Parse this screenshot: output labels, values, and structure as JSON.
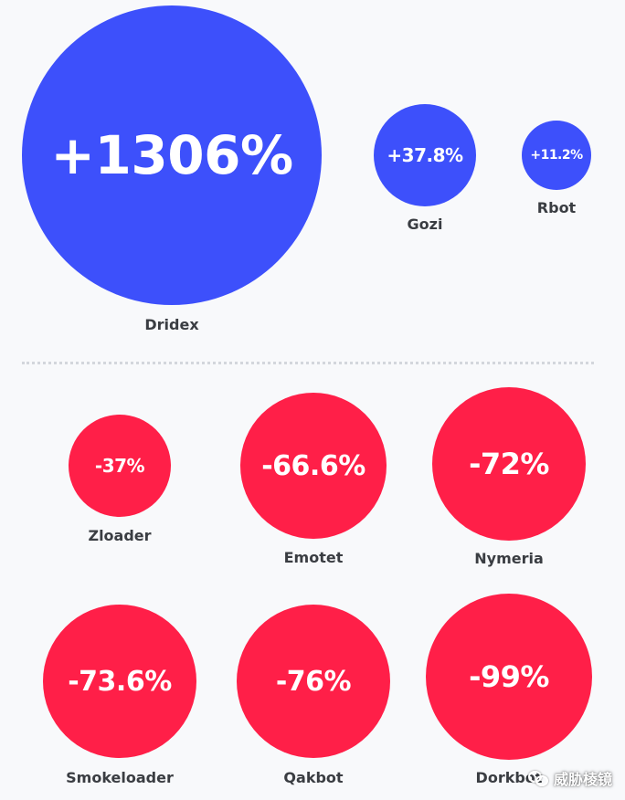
{
  "colors": {
    "background": "#f8f9fb",
    "increase": "#3d50fb",
    "decrease": "#ff1f48",
    "label": "#3a3d42",
    "divider": "#d3d6dc"
  },
  "chart_data": {
    "type": "bubble",
    "title": "",
    "value_unit": "%",
    "groups": [
      {
        "name": "increase",
        "color": "#3d50fb",
        "items": [
          {
            "label": "Dridex",
            "value": 1306,
            "display": "+1306%"
          },
          {
            "label": "Gozi",
            "value": 37.8,
            "display": "+37.8%"
          },
          {
            "label": "Rbot",
            "value": 11.2,
            "display": "+11.2%"
          }
        ]
      },
      {
        "name": "decrease",
        "color": "#ff1f48",
        "items": [
          {
            "label": "Zloader",
            "value": -37,
            "display": "-37%"
          },
          {
            "label": "Emotet",
            "value": -66.6,
            "display": "-66.6%"
          },
          {
            "label": "Nymeria",
            "value": -72,
            "display": "-72%"
          },
          {
            "label": "Smokeloader",
            "value": -73.6,
            "display": "-73.6%"
          },
          {
            "label": "Qakbot",
            "value": -76,
            "display": "-76%"
          },
          {
            "label": "Dorkbot",
            "value": -99,
            "display": "-99%"
          }
        ]
      }
    ]
  },
  "watermark": {
    "text": "威胁棱镜",
    "icon": "wechat-icon"
  }
}
